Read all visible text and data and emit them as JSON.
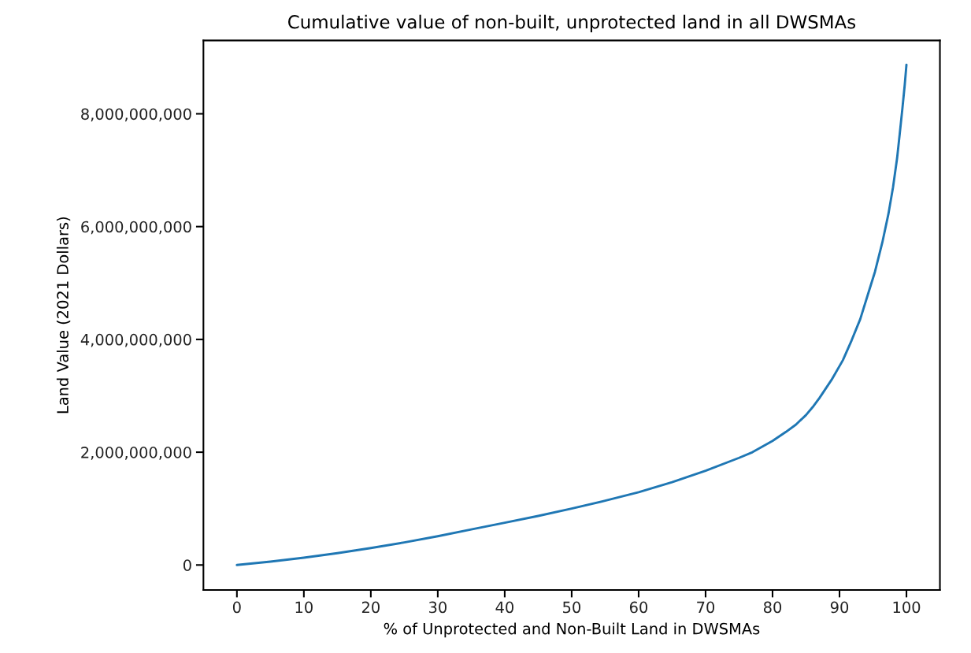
{
  "chart_data": {
    "type": "line",
    "title": "Cumulative value of non-built, unprotected land in all DWSMAs",
    "xlabel": "% of Unprotected and Non-Built Land in DWSMAs",
    "ylabel": "Land Value (2021 Dollars)",
    "x": [
      0,
      5,
      10,
      15,
      20,
      25,
      30,
      35,
      40,
      45,
      50,
      55,
      60,
      65,
      70,
      75,
      77,
      80,
      82,
      83.5,
      85,
      86,
      87,
      88.8,
      90.5,
      91.8,
      93.1,
      94.2,
      95.3,
      96.4,
      97.3,
      98,
      98.6,
      99,
      99.4,
      99.75,
      100
    ],
    "series": [
      {
        "color": "#1f77b4",
        "values": [
          0,
          60000000,
          130000000,
          210000000,
          300000000,
          400000000,
          510000000,
          630000000,
          750000000,
          870000000,
          1000000000,
          1140000000,
          1290000000,
          1470000000,
          1670000000,
          1900000000,
          2000000000,
          2200000000,
          2360000000,
          2490000000,
          2660000000,
          2800000000,
          2960000000,
          3280000000,
          3630000000,
          3980000000,
          4360000000,
          4780000000,
          5200000000,
          5720000000,
          6220000000,
          6700000000,
          7210000000,
          7650000000,
          8100000000,
          8520000000,
          8870000000
        ]
      }
    ],
    "xlim": [
      -5,
      105
    ],
    "ylim": [
      -443000000,
      9300000000
    ],
    "xticks": [
      0,
      10,
      20,
      30,
      40,
      50,
      60,
      70,
      80,
      90,
      100
    ],
    "yticks": [
      {
        "value": 0,
        "label": "0"
      },
      {
        "value": 2000000000,
        "label": "2,000,000,000"
      },
      {
        "value": 4000000000,
        "label": "4,000,000,000"
      },
      {
        "value": 6000000000,
        "label": "6,000,000,000"
      },
      {
        "value": 8000000000,
        "label": "8,000,000,000"
      }
    ],
    "grid": false,
    "line_style": "solid",
    "marker": "none"
  }
}
